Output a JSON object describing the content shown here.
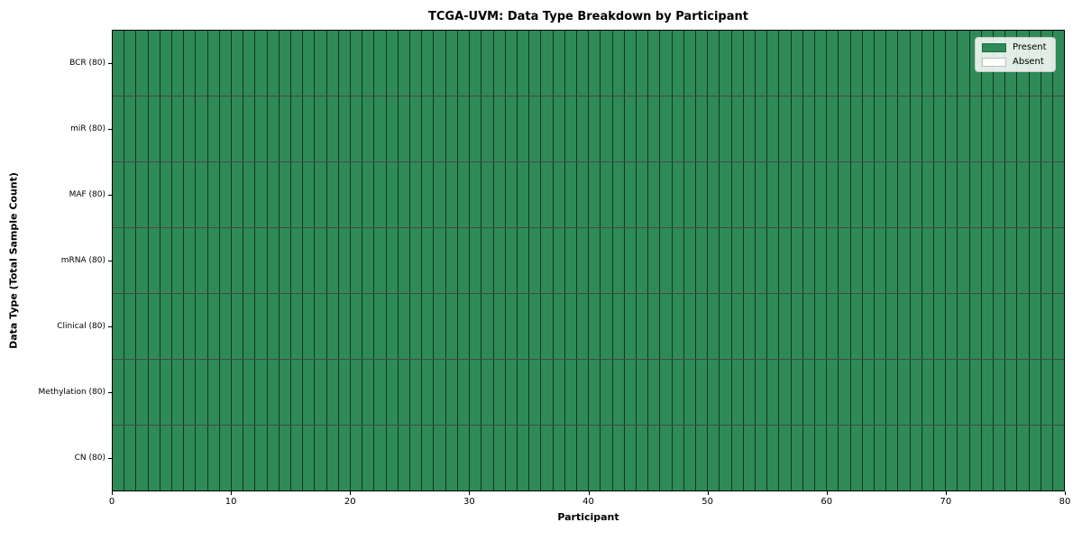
{
  "chart": {
    "title": "TCGA-UVM: Data Type Breakdown by Participant",
    "xlabel": "Participant",
    "ylabel": "Data Type (Total Sample Count)"
  },
  "legend": {
    "entries": [
      {
        "label": "Present",
        "color": "#2e8b57"
      },
      {
        "label": "Absent",
        "color": "#ffffff"
      }
    ],
    "position": "upper-right"
  },
  "chart_data": {
    "type": "heatmap",
    "title": "TCGA-UVM: Data Type Breakdown by Participant",
    "xlabel": "Participant",
    "ylabel": "Data Type (Total Sample Count)",
    "x_range": [
      0,
      80
    ],
    "x_ticks": [
      0,
      10,
      20,
      30,
      40,
      50,
      60,
      70,
      80
    ],
    "n_participants": 80,
    "categories": [
      "BCR (80)",
      "miR (80)",
      "MAF (80)",
      "mRNA (80)",
      "Clinical (80)",
      "Methylation (80)",
      "CN (80)"
    ],
    "series": [
      {
        "name": "BCR (80)",
        "present_count": 80,
        "absent_count": 0
      },
      {
        "name": "miR (80)",
        "present_count": 80,
        "absent_count": 0
      },
      {
        "name": "MAF (80)",
        "present_count": 80,
        "absent_count": 0
      },
      {
        "name": "mRNA (80)",
        "present_count": 80,
        "absent_count": 0
      },
      {
        "name": "Clinical (80)",
        "present_count": 80,
        "absent_count": 0
      },
      {
        "name": "Methylation (80)",
        "present_count": 80,
        "absent_count": 0
      },
      {
        "name": "CN (80)",
        "present_count": 80,
        "absent_count": 0
      }
    ],
    "cell_values_note": "every cell in the 7x80 grid is Present (value 1); no Absent cells are visible",
    "value_legend": {
      "1": "Present",
      "0": "Absent"
    },
    "colors": {
      "present": "#2e8b57",
      "absent": "#ffffff"
    },
    "grid": "black cell-border grid lines between all participants and data types",
    "legend_position": "upper right"
  }
}
